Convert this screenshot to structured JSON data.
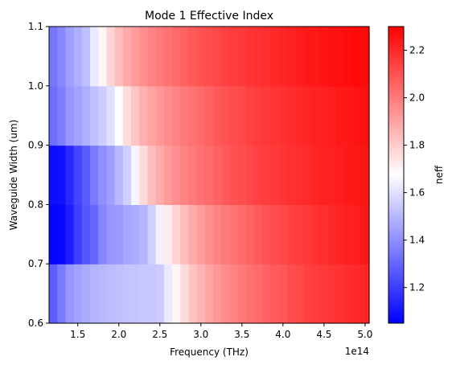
{
  "chart_data": {
    "type": "heatmap",
    "title": "Mode 1 Effective Index",
    "xlabel": "Frequency (THz)",
    "ylabel": "Waveguide Width (um)",
    "x_offset_label": "1e14",
    "colorbar_label": "neff",
    "colormap": "bwr",
    "colormap_stops": [
      "#0000ff",
      "#ffffff",
      "#ff0000"
    ],
    "clim": [
      1.05,
      2.3
    ],
    "xlim": [
      115000000000000,
      505000000000000
    ],
    "ylim": [
      0.6,
      1.1
    ],
    "x_ticks": [
      {
        "value": 150000000000000,
        "label": "1.5"
      },
      {
        "value": 200000000000000,
        "label": "2.0"
      },
      {
        "value": 250000000000000,
        "label": "2.5"
      },
      {
        "value": 300000000000000,
        "label": "3.0"
      },
      {
        "value": 350000000000000,
        "label": "3.5"
      },
      {
        "value": 400000000000000,
        "label": "4.0"
      },
      {
        "value": 450000000000000,
        "label": "4.5"
      },
      {
        "value": 500000000000000,
        "label": "5.0"
      }
    ],
    "y_ticks": [
      {
        "value": 0.6,
        "label": "0.6"
      },
      {
        "value": 0.7,
        "label": "0.7"
      },
      {
        "value": 0.8,
        "label": "0.8"
      },
      {
        "value": 0.9,
        "label": "0.9"
      },
      {
        "value": 1.0,
        "label": "1.0"
      },
      {
        "value": 1.1,
        "label": "1.1"
      }
    ],
    "colorbar_ticks": [
      {
        "value": 1.2,
        "label": "1.2"
      },
      {
        "value": 1.4,
        "label": "1.4"
      },
      {
        "value": 1.6,
        "label": "1.6"
      },
      {
        "value": 1.8,
        "label": "1.8"
      },
      {
        "value": 2.0,
        "label": "2.0"
      },
      {
        "value": 2.2,
        "label": "2.2"
      }
    ],
    "x_edges": [
      115000000000000,
      125000000000000,
      135000000000000,
      145000000000000,
      155000000000000,
      165000000000000,
      175000000000000,
      185000000000000,
      195000000000000,
      205000000000000,
      215000000000000,
      225000000000000,
      235000000000000,
      245000000000000,
      255000000000000,
      265000000000000,
      275000000000000,
      285000000000000,
      295000000000000,
      305000000000000,
      315000000000000,
      325000000000000,
      335000000000000,
      345000000000000,
      355000000000000,
      365000000000000,
      375000000000000,
      385000000000000,
      395000000000000,
      405000000000000,
      415000000000000,
      425000000000000,
      435000000000000,
      445000000000000,
      455000000000000,
      465000000000000,
      475000000000000,
      485000000000000,
      495000000000000,
      505000000000000
    ],
    "y_edges": [
      0.6,
      0.7,
      0.8,
      0.9,
      1.0,
      1.1
    ],
    "rows": [
      {
        "y_range": [
          0.6,
          0.7
        ],
        "values": [
          1.28,
          1.35,
          1.42,
          1.45,
          1.47,
          1.49,
          1.5,
          1.51,
          1.52,
          1.53,
          1.53,
          1.54,
          1.54,
          1.55,
          1.62,
          1.7,
          1.76,
          1.82,
          1.86,
          1.9,
          1.93,
          1.96,
          1.98,
          2.0,
          2.02,
          2.04,
          2.06,
          2.08,
          2.09,
          2.11,
          2.12,
          2.14,
          2.15,
          2.16,
          2.17,
          2.18,
          2.19,
          2.2,
          2.21
        ]
      },
      {
        "y_range": [
          0.7,
          0.8
        ],
        "values": [
          1.06,
          1.07,
          1.12,
          1.2,
          1.26,
          1.3,
          1.38,
          1.42,
          1.43,
          1.46,
          1.47,
          1.49,
          1.56,
          1.64,
          1.72,
          1.78,
          1.84,
          1.88,
          1.92,
          1.95,
          1.98,
          2.0,
          2.02,
          2.04,
          2.06,
          2.08,
          2.1,
          2.11,
          2.12,
          2.14,
          2.15,
          2.16,
          2.18,
          2.19,
          2.2,
          2.21,
          2.22,
          2.23,
          2.24
        ]
      },
      {
        "y_range": [
          0.8,
          0.9
        ],
        "values": [
          1.08,
          1.09,
          1.15,
          1.22,
          1.27,
          1.35,
          1.4,
          1.44,
          1.5,
          1.56,
          1.65,
          1.76,
          1.84,
          1.88,
          1.92,
          1.95,
          1.98,
          2.0,
          2.02,
          2.04,
          2.06,
          2.08,
          2.1,
          2.11,
          2.12,
          2.14,
          2.15,
          2.16,
          2.17,
          2.18,
          2.19,
          2.2,
          2.21,
          2.22,
          2.22,
          2.23,
          2.24,
          2.24,
          2.25
        ]
      },
      {
        "y_range": [
          0.9,
          1.0
        ],
        "values": [
          1.32,
          1.36,
          1.42,
          1.45,
          1.48,
          1.52,
          1.55,
          1.6,
          1.68,
          1.76,
          1.82,
          1.87,
          1.9,
          1.93,
          1.96,
          1.98,
          2.0,
          2.02,
          2.04,
          2.06,
          2.08,
          2.1,
          2.11,
          2.12,
          2.14,
          2.15,
          2.16,
          2.17,
          2.18,
          2.19,
          2.2,
          2.21,
          2.22,
          2.22,
          2.23,
          2.24,
          2.24,
          2.25,
          2.26
        ]
      },
      {
        "y_range": [
          1.0,
          1.1
        ],
        "values": [
          1.34,
          1.38,
          1.44,
          1.48,
          1.52,
          1.62,
          1.7,
          1.78,
          1.84,
          1.88,
          1.92,
          1.95,
          1.98,
          2.0,
          2.02,
          2.04,
          2.06,
          2.08,
          2.1,
          2.11,
          2.12,
          2.14,
          2.15,
          2.16,
          2.17,
          2.18,
          2.19,
          2.2,
          2.21,
          2.22,
          2.23,
          2.24,
          2.24,
          2.25,
          2.26,
          2.26,
          2.27,
          2.28,
          2.28
        ]
      }
    ]
  }
}
